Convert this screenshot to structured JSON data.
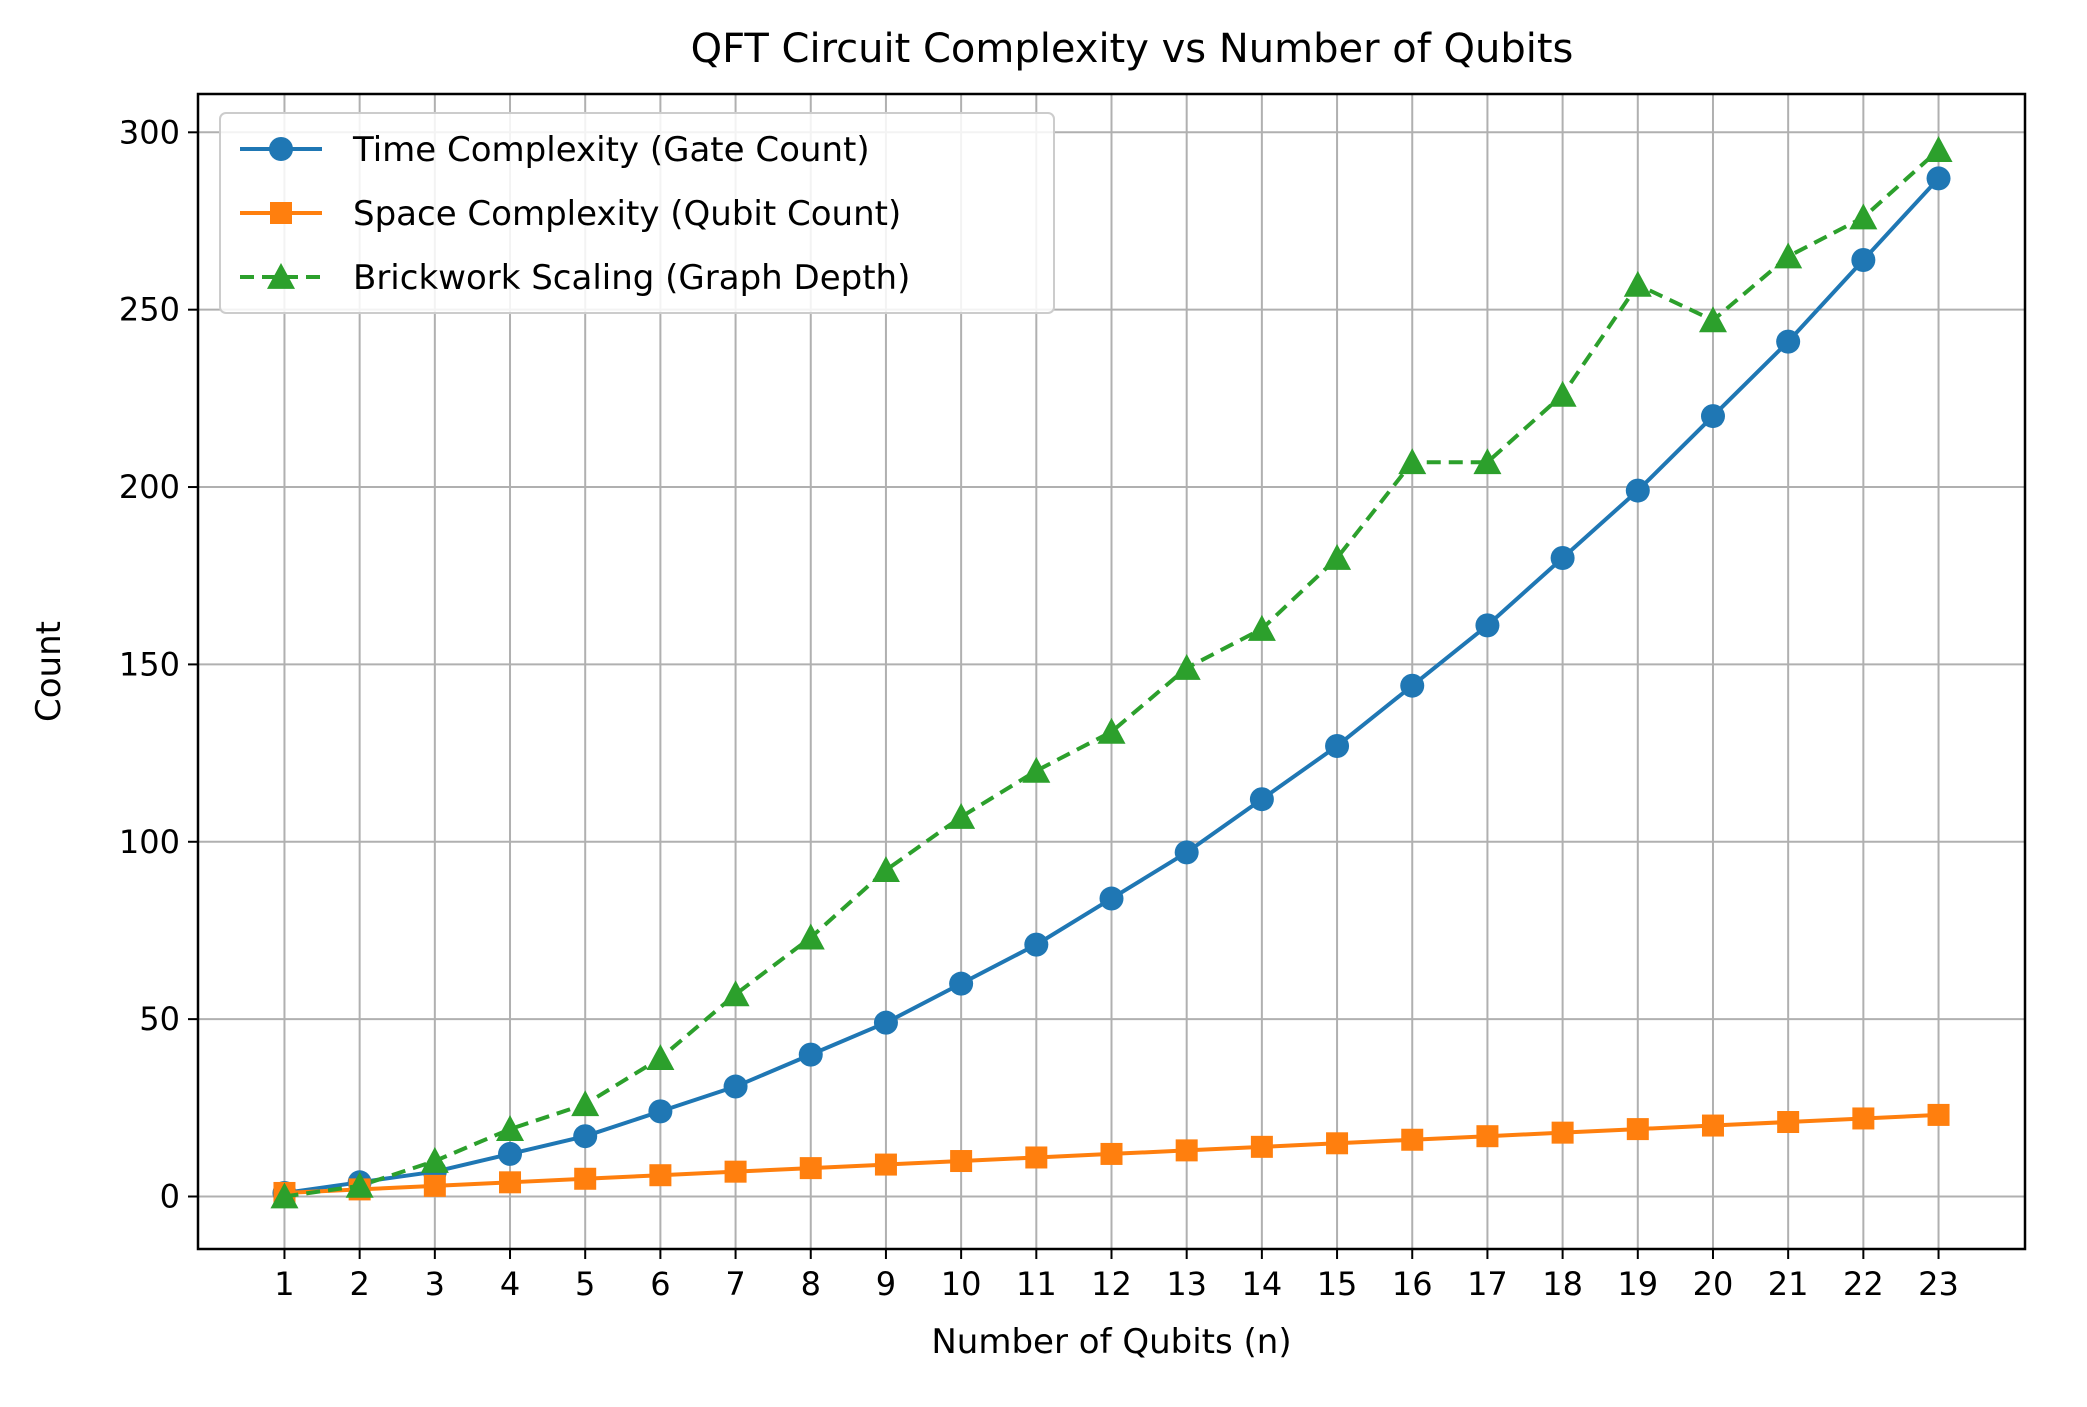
{
  "chart_data": {
    "type": "line",
    "title": "QFT Circuit Complexity vs Number of Qubits",
    "xlabel": "Number of Qubits (n)",
    "ylabel": "Count",
    "x": [
      1,
      2,
      3,
      4,
      5,
      6,
      7,
      8,
      9,
      10,
      11,
      12,
      13,
      14,
      15,
      16,
      17,
      18,
      19,
      20,
      21,
      22,
      23
    ],
    "xlim": [
      -0.15,
      24.15
    ],
    "ylim": [
      -14.8,
      310.8
    ],
    "yticks": [
      0,
      50,
      100,
      150,
      200,
      250,
      300
    ],
    "grid": true,
    "legend_position": "upper-left",
    "series": [
      {
        "name": "Time Complexity (Gate Count)",
        "color": "#1f77b4",
        "marker": "circle",
        "line_style": "solid",
        "values": [
          1,
          4,
          7,
          12,
          17,
          24,
          31,
          40,
          49,
          60,
          71,
          84,
          97,
          112,
          127,
          144,
          161,
          180,
          199,
          220,
          241,
          264,
          287
        ]
      },
      {
        "name": "Space Complexity (Qubit Count)",
        "color": "#ff7f0e",
        "marker": "square",
        "line_style": "solid",
        "values": [
          1,
          2,
          3,
          4,
          5,
          6,
          7,
          8,
          9,
          10,
          11,
          12,
          13,
          14,
          15,
          16,
          17,
          18,
          19,
          20,
          21,
          22,
          23
        ]
      },
      {
        "name": "Brickwork Scaling (Graph Depth)",
        "color": "#2ca02c",
        "marker": "triangle",
        "line_style": "dashed",
        "values": [
          0,
          3,
          10,
          19,
          26,
          39,
          57,
          73,
          92,
          107,
          120,
          131,
          149,
          160,
          180,
          207,
          207,
          226,
          257,
          247,
          265,
          276,
          295
        ]
      }
    ]
  }
}
